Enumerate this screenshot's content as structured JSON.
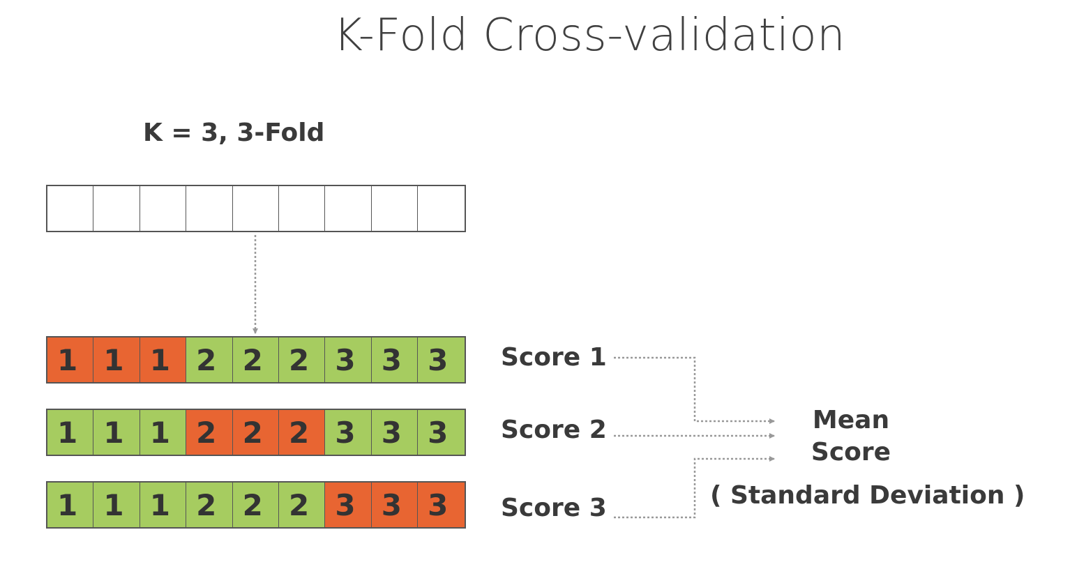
{
  "title": "K-Fold Cross-validation",
  "subtitle": "K = 3, 3-Fold",
  "colors": {
    "test_fold": "#e86532",
    "train_fold": "#a6cc60",
    "empty": "#ffffff",
    "border": "#555555",
    "connector": "#999999"
  },
  "dataset_cells": 9,
  "folds": [
    {
      "cells": [
        {
          "label": "1",
          "role": "test"
        },
        {
          "label": "1",
          "role": "test"
        },
        {
          "label": "1",
          "role": "test"
        },
        {
          "label": "2",
          "role": "train"
        },
        {
          "label": "2",
          "role": "train"
        },
        {
          "label": "2",
          "role": "train"
        },
        {
          "label": "3",
          "role": "train"
        },
        {
          "label": "3",
          "role": "train"
        },
        {
          "label": "3",
          "role": "train"
        }
      ],
      "score": "Score 1"
    },
    {
      "cells": [
        {
          "label": "1",
          "role": "train"
        },
        {
          "label": "1",
          "role": "train"
        },
        {
          "label": "1",
          "role": "train"
        },
        {
          "label": "2",
          "role": "test"
        },
        {
          "label": "2",
          "role": "test"
        },
        {
          "label": "2",
          "role": "test"
        },
        {
          "label": "3",
          "role": "train"
        },
        {
          "label": "3",
          "role": "train"
        },
        {
          "label": "3",
          "role": "train"
        }
      ],
      "score": "Score 2"
    },
    {
      "cells": [
        {
          "label": "1",
          "role": "train"
        },
        {
          "label": "1",
          "role": "train"
        },
        {
          "label": "1",
          "role": "train"
        },
        {
          "label": "2",
          "role": "train"
        },
        {
          "label": "2",
          "role": "train"
        },
        {
          "label": "2",
          "role": "train"
        },
        {
          "label": "3",
          "role": "test"
        },
        {
          "label": "3",
          "role": "test"
        },
        {
          "label": "3",
          "role": "test"
        }
      ],
      "score": "Score 3"
    }
  ],
  "result": {
    "mean_line1": "Mean",
    "mean_line2": "Score",
    "std_dev": "( Standard Deviation )"
  }
}
